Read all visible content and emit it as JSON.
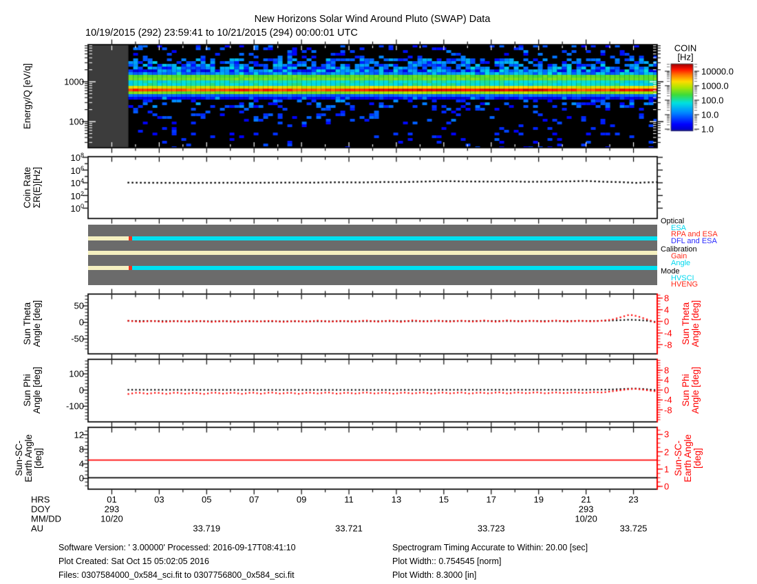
{
  "header": {
    "title": "New Horizons Solar Wind Around Pluto (SWAP) Data",
    "subtitle": "10/19/2015 (292) 23:59:41 to 10/21/2015 (294) 00:00:01 UTC"
  },
  "colorbar": {
    "title": [
      "COIN",
      "[Hz]"
    ],
    "tick_labels": [
      "10000.0",
      "1000.0",
      "100.0",
      "10.0",
      "1.0"
    ],
    "tick_log_values": [
      4,
      3,
      2,
      1,
      0
    ]
  },
  "panels": {
    "spectrogram": {
      "ylabel": "Energy/Q [eV/q]",
      "ytick_labels": [
        "1000",
        "100"
      ],
      "ytick_values": [
        1000,
        100
      ]
    },
    "coin_rate": {
      "ylabel_lines": [
        "Coin Rate",
        "ΣR(E)[Hz]"
      ],
      "ytick_base": "10",
      "ytick_exponents": [
        8,
        6,
        4,
        2,
        0
      ]
    },
    "status": {
      "legend": [
        {
          "header": "Optical",
          "items": [
            {
              "label": "ESA",
              "color": "#00d8ee"
            },
            {
              "label": "RPA and ESA",
              "color": "#ff2a1a"
            },
            {
              "label": "DFL and ESA",
              "color": "#2a2aff"
            }
          ]
        },
        {
          "header": "Calibration",
          "items": [
            {
              "label": "Gain",
              "color": "#ff2a1a"
            },
            {
              "label": "Angle",
              "color": "#00d8ee"
            }
          ]
        },
        {
          "header": "Mode",
          "items": [
            {
              "label": "HVSCI",
              "color": "#00d8ee"
            },
            {
              "label": "HVENG",
              "color": "#ff2a1a"
            }
          ]
        }
      ]
    },
    "sun_theta": {
      "ylabel_lines": [
        "Sun Theta",
        "Angle [deg]"
      ],
      "right_label_lines": [
        "Sun Theta",
        "Angle [deg]"
      ],
      "left_ticks": [
        50,
        0,
        -50
      ],
      "right_ticks": [
        8,
        4,
        0,
        -4,
        -8
      ]
    },
    "sun_phi": {
      "ylabel_lines": [
        "Sun Phi",
        "Angle [deg]"
      ],
      "right_label_lines": [
        "Sun Phi",
        "Angle [deg]"
      ],
      "left_ticks": [
        100,
        0,
        -100
      ],
      "right_ticks": [
        8,
        4,
        0,
        -4,
        -8
      ]
    },
    "sun_sc_earth": {
      "ylabel_lines": [
        "Sun-SC-",
        "Earth Angle",
        "[deg]"
      ],
      "right_label_lines": [
        "Sun-SC-",
        "Earth Angle",
        "[deg]"
      ],
      "left_ticks": [
        12,
        8,
        4,
        0
      ],
      "right_ticks": [
        3,
        2,
        1,
        0
      ]
    }
  },
  "xaxis": {
    "row_labels": [
      "HRS",
      "DOY",
      "MM/DD",
      "AU"
    ],
    "hour_ticks": [
      {
        "hr": 1,
        "label": "01"
      },
      {
        "hr": 3,
        "label": "03"
      },
      {
        "hr": 5,
        "label": "05"
      },
      {
        "hr": 7,
        "label": "07"
      },
      {
        "hr": 9,
        "label": "09"
      },
      {
        "hr": 11,
        "label": "11"
      },
      {
        "hr": 13,
        "label": "13"
      },
      {
        "hr": 15,
        "label": "15"
      },
      {
        "hr": 17,
        "label": "17"
      },
      {
        "hr": 19,
        "label": "19"
      },
      {
        "hr": 21,
        "label": "21"
      },
      {
        "hr": 23,
        "label": "23"
      }
    ],
    "doy_labels": [
      {
        "hr": 1,
        "label": "293"
      },
      {
        "hr": 21,
        "label": "293"
      }
    ],
    "mmdd_labels": [
      {
        "hr": 1,
        "label": "10/20"
      },
      {
        "hr": 21,
        "label": "10/20"
      }
    ],
    "au_labels": [
      {
        "hr": 5,
        "label": "33.719"
      },
      {
        "hr": 11,
        "label": "33.721"
      },
      {
        "hr": 17,
        "label": "33.723"
      },
      {
        "hr": 23,
        "label": "33.725"
      }
    ]
  },
  "footer": {
    "left": [
      "Software Version:  ' 3.00000'  Processed: 2016-09-17T08:41:10",
      "Plot Created: Sat Oct 15 05:02:05 2016",
      "Files: 0307584000_0x584_sci.fit to 0307756800_0x584_sci.fit"
    ],
    "right": [
      "Spectrogram Timing Accurate to Within: 20.00 [sec]",
      "Plot Width:: 0.754545 [norm]",
      "Plot Width: 8.3000 [in]"
    ]
  },
  "colors": {
    "axis_red": "#ff0000",
    "status_bg": "#6b6b6b",
    "nodata_gray": "#3c3c3c",
    "cream": "#f5f0c0",
    "cyan": "#00e0f0",
    "status_red": "#ee3322",
    "series_black": "#000000"
  },
  "chart_data": [
    {
      "id": "spectrogram",
      "type": "heatmap",
      "title": "Energy/Q spectrogram of coincidence rate",
      "x_range_hours": [
        0,
        24
      ],
      "data_start_hour": 1.7,
      "energy_range_ev": [
        22,
        8500
      ],
      "colorbar_range_hz": [
        1.0,
        10000.0
      ],
      "features": [
        {
          "name": "proton-beam",
          "center_ev": 630,
          "sigma_log10": 0.085,
          "peak_log10_hz": 3.95
        },
        {
          "name": "alpha-band",
          "center_ev": 1260,
          "sigma_log10": 0.07,
          "peak_log10_hz": 2.9
        },
        {
          "name": "suprathermal-haze",
          "range_ev": [
            1500,
            4200
          ],
          "typ_log10_hz": 1.0
        },
        {
          "name": "background-speckle",
          "range_ev": [
            22,
            500
          ],
          "typ_log10_hz": 0.6
        }
      ]
    },
    {
      "id": "coin_rate",
      "type": "scatter",
      "yscale": "log",
      "ylim_log10": [
        -1.6,
        8.1
      ],
      "series": [
        {
          "name": "coin-rate",
          "color": "#000000",
          "points_hr_log10hz": [
            [
              1.7,
              4.02
            ],
            [
              2.5,
              4.0
            ],
            [
              4,
              3.98
            ],
            [
              5.5,
              4.0
            ],
            [
              7,
              4.0
            ],
            [
              8.5,
              4.03
            ],
            [
              9.5,
              4.02
            ],
            [
              10.5,
              4.08
            ],
            [
              11.5,
              4.05
            ],
            [
              12.5,
              4.12
            ],
            [
              13,
              4.1
            ],
            [
              13.8,
              4.15
            ],
            [
              14.5,
              4.22
            ],
            [
              15.2,
              4.25
            ],
            [
              16,
              4.2
            ],
            [
              17,
              4.18
            ],
            [
              17.8,
              4.22
            ],
            [
              18.5,
              4.15
            ],
            [
              19.5,
              4.18
            ],
            [
              20.3,
              4.22
            ],
            [
              21,
              4.28
            ],
            [
              21.8,
              4.15
            ],
            [
              22.5,
              4.1
            ],
            [
              23.1,
              3.98
            ],
            [
              23.5,
              4.05
            ],
            [
              24,
              4.1
            ]
          ]
        }
      ]
    },
    {
      "id": "ops_timeline",
      "type": "timeline",
      "rows": [
        {
          "name": "Optical",
          "segments": [
            {
              "label": "none",
              "color": "#f5f0c0",
              "from_hr": 0,
              "to_hr": 1.7
            },
            {
              "label": "RPA and ESA",
              "color": "#ee3322",
              "from_hr": 1.7,
              "to_hr": 1.85
            },
            {
              "label": "ESA",
              "color": "#00e0f0",
              "from_hr": 1.85,
              "to_hr": 24
            }
          ]
        },
        {
          "name": "Calibration",
          "segments": [
            {
              "label": "none",
              "color": "#f5f0c0",
              "from_hr": 0,
              "to_hr": 24
            }
          ]
        },
        {
          "name": "Mode",
          "segments": [
            {
              "label": "none",
              "color": "#f5f0c0",
              "from_hr": 0,
              "to_hr": 1.7
            },
            {
              "label": "HVENG",
              "color": "#ee3322",
              "from_hr": 1.7,
              "to_hr": 1.85
            },
            {
              "label": "HVSCI",
              "color": "#00e0f0",
              "from_hr": 1.85,
              "to_hr": 24
            }
          ]
        }
      ]
    },
    {
      "id": "sun_theta",
      "type": "scatter",
      "left_ylim": [
        -90,
        90
      ],
      "right_ylim": [
        -10,
        10
      ],
      "series": [
        {
          "name": "theta-black-deg",
          "color": "#000000",
          "points": [
            [
              1.7,
              0.15
            ],
            [
              4,
              0.05
            ],
            [
              8,
              0.0
            ],
            [
              12,
              0.05
            ],
            [
              16,
              0.1
            ],
            [
              20,
              0.1
            ],
            [
              21.5,
              0.15
            ],
            [
              22.3,
              0.35
            ],
            [
              22.8,
              0.55
            ],
            [
              23.2,
              0.45
            ],
            [
              23.6,
              0.2
            ],
            [
              24,
              -0.3
            ]
          ]
        },
        {
          "name": "theta-red-deg",
          "color": "#ff0000",
          "points": [
            [
              1.7,
              0.2
            ],
            [
              2.2,
              -0.15
            ],
            [
              2.7,
              0.15
            ],
            [
              3.2,
              -0.2
            ],
            [
              3.7,
              0.1
            ],
            [
              4.2,
              -0.15
            ],
            [
              4.7,
              0.15
            ],
            [
              5.2,
              -0.2
            ],
            [
              5.7,
              0.1
            ],
            [
              6.2,
              -0.2
            ],
            [
              6.7,
              0.15
            ],
            [
              7.2,
              -0.1
            ],
            [
              7.7,
              0.2
            ],
            [
              8.2,
              -0.2
            ],
            [
              8.7,
              0.1
            ],
            [
              9.2,
              -0.15
            ],
            [
              9.7,
              0.25
            ],
            [
              10.2,
              -0.15
            ],
            [
              10.7,
              0.2
            ],
            [
              11.2,
              -0.2
            ],
            [
              11.7,
              0.3
            ],
            [
              12.2,
              -0.15
            ],
            [
              12.7,
              0.25
            ],
            [
              13.2,
              -0.2
            ],
            [
              13.7,
              0.35
            ],
            [
              14.2,
              -0.1
            ],
            [
              14.7,
              0.3
            ],
            [
              15.2,
              -0.15
            ],
            [
              15.7,
              0.25
            ],
            [
              16.2,
              -0.1
            ],
            [
              16.7,
              0.3
            ],
            [
              17.2,
              -0.15
            ],
            [
              17.7,
              0.35
            ],
            [
              18.2,
              -0.1
            ],
            [
              18.7,
              0.25
            ],
            [
              19.2,
              -0.15
            ],
            [
              19.7,
              0.3
            ],
            [
              20.2,
              -0.1
            ],
            [
              20.7,
              0.25
            ],
            [
              21.2,
              0.0
            ],
            [
              21.7,
              0.2
            ],
            [
              22.1,
              0.6
            ],
            [
              22.5,
              1.5
            ],
            [
              22.8,
              2.2
            ],
            [
              23.0,
              2.1
            ],
            [
              23.3,
              1.4
            ],
            [
              23.6,
              0.6
            ],
            [
              23.8,
              0.0
            ],
            [
              24,
              -0.7
            ]
          ]
        }
      ]
    },
    {
      "id": "sun_phi",
      "type": "scatter",
      "left_ylim": [
        -195,
        195
      ],
      "right_ylim": [
        -12,
        12
      ],
      "series": [
        {
          "name": "phi-black-deg",
          "color": "#000000",
          "points": [
            [
              1.7,
              0.1
            ],
            [
              6,
              0.05
            ],
            [
              12,
              0.05
            ],
            [
              18,
              0.1
            ],
            [
              21,
              0.1
            ],
            [
              22,
              0.2
            ],
            [
              22.6,
              0.45
            ],
            [
              23,
              0.6
            ],
            [
              23.4,
              0.45
            ],
            [
              23.7,
              0.2
            ],
            [
              24,
              -0.1
            ]
          ]
        },
        {
          "name": "phi-red-deg",
          "color": "#ff0000",
          "points": [
            [
              1.7,
              -1.6
            ],
            [
              2.1,
              -1.0
            ],
            [
              2.5,
              -1.5
            ],
            [
              2.9,
              -1.05
            ],
            [
              3.3,
              -1.55
            ],
            [
              3.7,
              -1.0
            ],
            [
              4.1,
              -1.5
            ],
            [
              4.5,
              -1.1
            ],
            [
              4.9,
              -1.6
            ],
            [
              5.3,
              -1.0
            ],
            [
              5.7,
              -1.45
            ],
            [
              6.1,
              -1.05
            ],
            [
              6.5,
              -1.55
            ],
            [
              6.9,
              -1.0
            ],
            [
              7.3,
              -1.5
            ],
            [
              7.7,
              -0.95
            ],
            [
              8.1,
              -1.45
            ],
            [
              8.5,
              -1.05
            ],
            [
              8.9,
              -1.55
            ],
            [
              9.3,
              -1.0
            ],
            [
              9.7,
              -1.4
            ],
            [
              10.1,
              -0.95
            ],
            [
              10.5,
              -1.5
            ],
            [
              10.9,
              -1.05
            ],
            [
              11.3,
              -1.45
            ],
            [
              11.7,
              -0.95
            ],
            [
              12.1,
              -1.4
            ],
            [
              12.5,
              -1.0
            ],
            [
              12.9,
              -1.5
            ],
            [
              13.3,
              -1.0
            ],
            [
              13.7,
              -1.4
            ],
            [
              14.1,
              -0.95
            ],
            [
              14.5,
              -1.45
            ],
            [
              14.9,
              -1.0
            ],
            [
              15.3,
              -1.35
            ],
            [
              15.7,
              -0.95
            ],
            [
              16.1,
              -1.45
            ],
            [
              16.5,
              -1.0
            ],
            [
              16.9,
              -1.35
            ],
            [
              17.3,
              -0.9
            ],
            [
              17.7,
              -1.4
            ],
            [
              18.1,
              -0.95
            ],
            [
              18.5,
              -1.3
            ],
            [
              18.9,
              -0.9
            ],
            [
              19.3,
              -1.35
            ],
            [
              19.7,
              -0.95
            ],
            [
              20.1,
              -1.25
            ],
            [
              20.5,
              -0.9
            ],
            [
              20.9,
              -1.2
            ],
            [
              21.3,
              -0.85
            ],
            [
              21.7,
              -1.0
            ],
            [
              22.0,
              -0.6
            ],
            [
              22.4,
              -0.15
            ],
            [
              22.8,
              0.35
            ],
            [
              23.1,
              0.5
            ],
            [
              23.4,
              0.15
            ],
            [
              23.7,
              -0.25
            ],
            [
              24,
              -0.55
            ]
          ]
        }
      ]
    },
    {
      "id": "sun_sc_earth",
      "type": "line",
      "series": [
        {
          "name": "black-line-left-scale-deg",
          "color": "#000000",
          "constant_value": 0.2
        },
        {
          "name": "red-line-right-scale-deg",
          "color": "#ff0000",
          "constant_value": 1.52
        }
      ]
    }
  ]
}
